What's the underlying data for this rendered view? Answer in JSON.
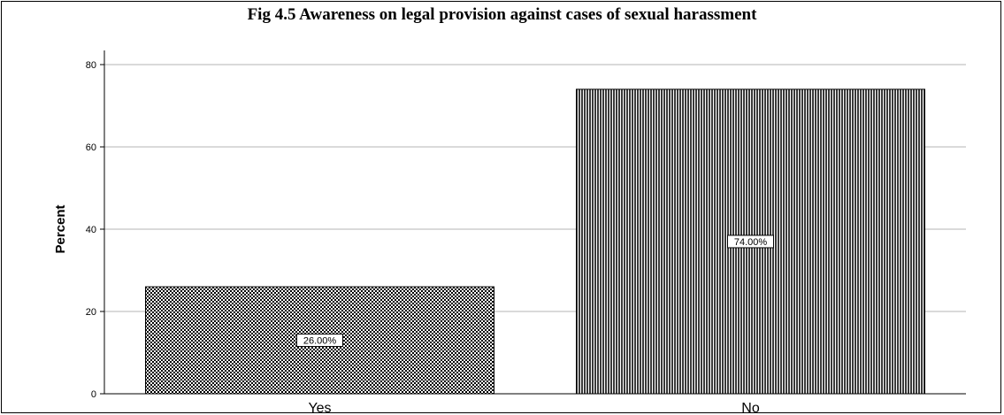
{
  "chart_data": {
    "type": "bar",
    "title": "Fig 4.5 Awareness on legal provision against cases of sexual harassment",
    "xlabel": "",
    "ylabel": "Percent",
    "categories": [
      "Yes",
      "No"
    ],
    "values": [
      26,
      74
    ],
    "data_labels": [
      "26.00%",
      "74.00%"
    ],
    "ylim": [
      0,
      80
    ],
    "yticks": [
      0,
      20,
      40,
      60,
      80
    ],
    "grid": true,
    "legend": "none",
    "bar_patterns": [
      "checkerboard",
      "vertical-stripes"
    ],
    "colors": {
      "bar_dark": "#000000",
      "bar_light": "#ffffff",
      "grid": "#b4b4b4",
      "axis": "#000000"
    }
  }
}
